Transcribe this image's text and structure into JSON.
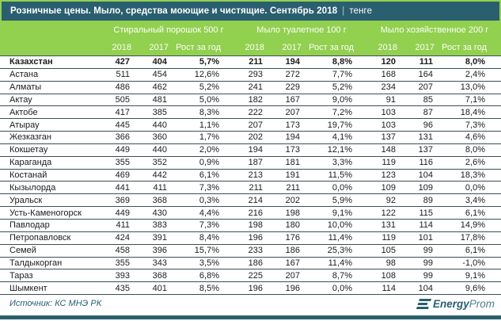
{
  "title": {
    "text": "Розничные цены. Мыло, средства моющие и чистящие. Сентябрь 2018",
    "separator": "|",
    "unit": "тенге"
  },
  "chart_data": {
    "type": "table",
    "title": "Розничные цены. Мыло, средства моющие и чистящие. Сентябрь 2018",
    "unit": "тенге",
    "column_groups": [
      {
        "label": "Стиральный порошок 500 г"
      },
      {
        "label": "Мыло туалетное 100 г"
      },
      {
        "label": "Мыло хозяйственное 200 г"
      }
    ],
    "sub_columns": [
      "2018",
      "2017",
      "Рост за год"
    ],
    "rows": [
      {
        "region": "Казахстан",
        "values": [
          "427",
          "404",
          "5,7%",
          "211",
          "194",
          "8,8%",
          "120",
          "111",
          "8,0%"
        ]
      },
      {
        "region": "Астана",
        "values": [
          "511",
          "454",
          "12,6%",
          "293",
          "272",
          "7,7%",
          "168",
          "164",
          "2,4%"
        ]
      },
      {
        "region": "Алматы",
        "values": [
          "486",
          "462",
          "5,2%",
          "241",
          "229",
          "5,2%",
          "234",
          "207",
          "13,0%"
        ]
      },
      {
        "region": "Актау",
        "values": [
          "505",
          "481",
          "5,0%",
          "182",
          "167",
          "9,0%",
          "91",
          "85",
          "7,1%"
        ]
      },
      {
        "region": "Актобе",
        "values": [
          "417",
          "385",
          "8,3%",
          "222",
          "207",
          "7,2%",
          "103",
          "87",
          "18,4%"
        ]
      },
      {
        "region": "Атырау",
        "values": [
          "445",
          "440",
          "1,1%",
          "207",
          "173",
          "19,7%",
          "103",
          "96",
          "7,3%"
        ]
      },
      {
        "region": "Жезказган",
        "values": [
          "366",
          "360",
          "1,7%",
          "202",
          "194",
          "4,1%",
          "137",
          "131",
          "4,6%"
        ]
      },
      {
        "region": "Кокшетау",
        "values": [
          "449",
          "440",
          "2,0%",
          "194",
          "173",
          "12,1%",
          "148",
          "137",
          "8,0%"
        ]
      },
      {
        "region": "Караганда",
        "values": [
          "355",
          "352",
          "0,9%",
          "187",
          "181",
          "3,3%",
          "119",
          "116",
          "2,6%"
        ]
      },
      {
        "region": "Костанай",
        "values": [
          "469",
          "442",
          "6,1%",
          "213",
          "191",
          "11,5%",
          "123",
          "104",
          "18,3%"
        ]
      },
      {
        "region": "Кызылорда",
        "values": [
          "441",
          "411",
          "7,3%",
          "211",
          "211",
          "0,0%",
          "109",
          "109",
          "0,0%"
        ]
      },
      {
        "region": "Уральск",
        "values": [
          "369",
          "368",
          "0,3%",
          "214",
          "202",
          "5,9%",
          "92",
          "89",
          "3,4%"
        ]
      },
      {
        "region": "Усть-Каменогорск",
        "values": [
          "449",
          "430",
          "4,4%",
          "216",
          "198",
          "9,1%",
          "122",
          "115",
          "6,1%"
        ]
      },
      {
        "region": "Павлодар",
        "values": [
          "411",
          "383",
          "7,3%",
          "198",
          "180",
          "10,0%",
          "131",
          "114",
          "14,9%"
        ]
      },
      {
        "region": "Петропавловск",
        "values": [
          "424",
          "391",
          "8,4%",
          "196",
          "176",
          "11,4%",
          "119",
          "101",
          "17,8%"
        ]
      },
      {
        "region": "Семей",
        "values": [
          "458",
          "396",
          "15,7%",
          "233",
          "186",
          "25,3%",
          "105",
          "99",
          "6,1%"
        ]
      },
      {
        "region": "Талдыкорган",
        "values": [
          "355",
          "343",
          "3,5%",
          "186",
          "167",
          "11,4%",
          "98",
          "99",
          "-1,0%"
        ]
      },
      {
        "region": "Тараз",
        "values": [
          "393",
          "368",
          "6,8%",
          "225",
          "207",
          "8,7%",
          "108",
          "99",
          "9,1%"
        ]
      },
      {
        "region": "Шымкент",
        "values": [
          "435",
          "401",
          "8,5%",
          "196",
          "196",
          "0,0%",
          "114",
          "104",
          "9,6%"
        ]
      }
    ]
  },
  "footer": {
    "source": "Источник: КС МНЭ РК",
    "logo_bold": "Energy",
    "logo_light": "Prom"
  },
  "colors": {
    "teal": "#2A5F6F",
    "green": "#92D050",
    "row_border": "#3b4e57"
  }
}
